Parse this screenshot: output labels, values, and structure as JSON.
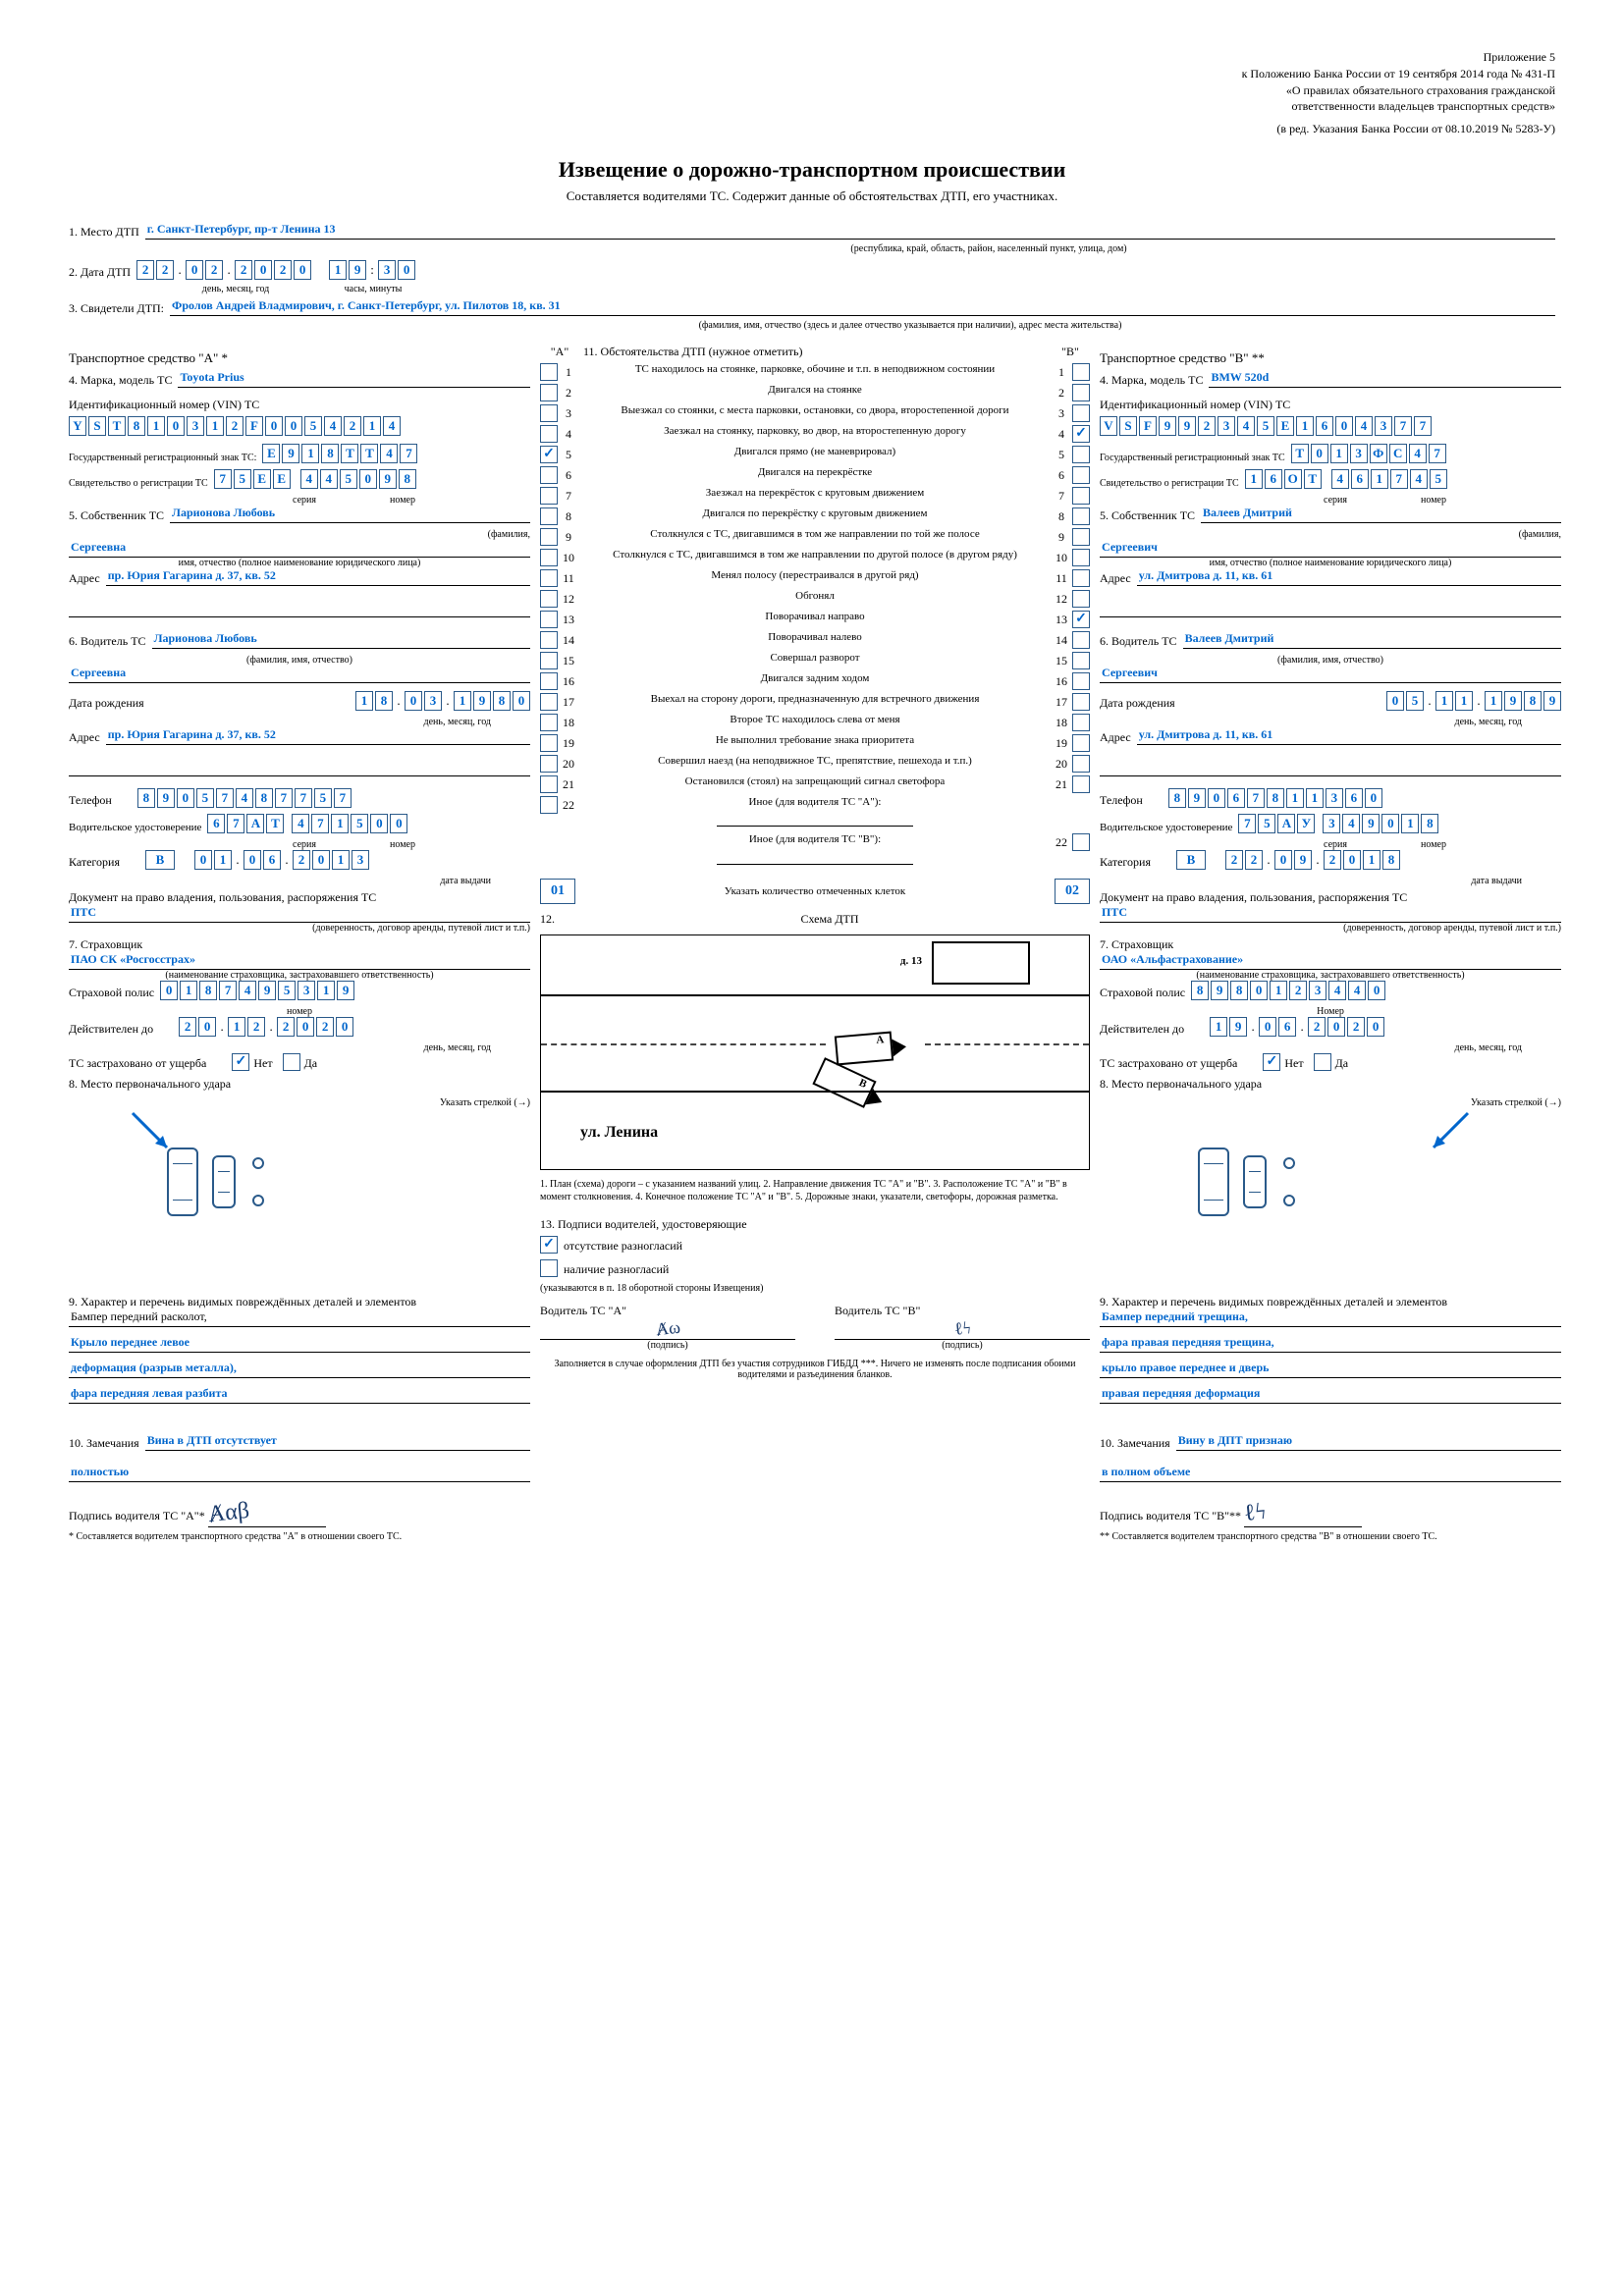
{
  "header": {
    "annex": "Приложение 5",
    "line1": "к Положению Банка России от 19 сентября 2014 года № 431-П",
    "line2": "«О правилах обязательного страхования гражданской",
    "line3": "ответственности владельцев транспортных средств»",
    "line4": "(в ред. Указания Банка России от 08.10.2019 № 5283-У)"
  },
  "title": "Извещение о дорожно-транспортном происшествии",
  "subtitle": "Составляется водителями ТС. Содержит данные об обстоятельствах ДТП, его участниках.",
  "field1": {
    "label": "1. Место ДТП",
    "value": "г. Санкт-Петербург, пр-т Ленина 13",
    "hint": "(республика, край, область, район, населенный пункт, улица, дом)"
  },
  "field2": {
    "label": "2. Дата ДТП",
    "date": [
      "2",
      "2",
      "0",
      "2",
      "2",
      "0",
      "2",
      "0"
    ],
    "time": [
      "1",
      "9",
      "3",
      "0"
    ],
    "date_hint": "день, месяц, год",
    "time_hint": "часы, минуты"
  },
  "field3": {
    "label": "3. Свидетели ДТП:",
    "value": "Фролов Андрей Владмирович, г. Санкт-Петербург, ул. Пилотов 18, кв. 31",
    "hint": "(фамилия, имя, отчество (здесь и далее отчество указывается при наличии), адрес места жительства)"
  },
  "vehicleA": {
    "header": "Транспортное средство \"А\" *",
    "f4_label": "4. Марка, модель ТС",
    "f4_value": "Toyota Prius",
    "vin_label": "Идентификационный номер (VIN) ТС",
    "vin": [
      "Y",
      "S",
      "T",
      "8",
      "1",
      "0",
      "3",
      "1",
      "2",
      "F",
      "0",
      "0",
      "5",
      "4",
      "2",
      "1",
      "4"
    ],
    "reg_label": "Государственный регистрационный знак ТС:",
    "reg": [
      "Е",
      "9",
      "1",
      "8",
      "Т",
      "Т",
      "4",
      "7"
    ],
    "cert_label": "Свидетельство о регистрации ТС",
    "cert_s": [
      "7",
      "5",
      "Е",
      "Е"
    ],
    "cert_n": [
      "4",
      "4",
      "5",
      "0",
      "9",
      "8"
    ],
    "cert_s_hint": "серия",
    "cert_n_hint": "номер",
    "f5_label": "5. Собственник ТС",
    "f5_value1": "Ларионова Любовь",
    "f5_value2": "Сергеевна",
    "f5_hint1": "(фамилия,",
    "f5_hint2": "имя, отчество (полное наименование юридического лица)",
    "addr_label": "Адрес",
    "addr_value": "пр. Юрия Гагарина д. 37, кв. 52",
    "f6_label": "6. Водитель ТС",
    "f6_value1": "Ларионова Любовь",
    "f6_value2": "Сергеевна",
    "f6_hint": "(фамилия, имя, отчество)",
    "dob_label": "Дата рождения",
    "dob": [
      "1",
      "8",
      "0",
      "3",
      "1",
      "9",
      "8",
      "0"
    ],
    "dob_hint": "день, месяц, год",
    "addr2_value": "пр. Юрия Гагарина д. 37, кв. 52",
    "phone_label": "Телефон",
    "phone": [
      "8",
      "9",
      "0",
      "5",
      "7",
      "4",
      "8",
      "7",
      "7",
      "5",
      "7"
    ],
    "lic_label": "Водительское удостоверение",
    "lic_s": [
      "6",
      "7",
      "А",
      "Т"
    ],
    "lic_n": [
      "4",
      "7",
      "1",
      "5",
      "0",
      "0"
    ],
    "cat_label": "Категория",
    "cat_value": "B",
    "cat_date": [
      "0",
      "1",
      "0",
      "6",
      "2",
      "0",
      "1",
      "3"
    ],
    "cat_date_hint": "дата выдачи",
    "doc_label": "Документ на право владения, пользования, распоряжения ТС",
    "doc_value": "ПТС",
    "doc_hint": "(доверенность, договор аренды, путевой лист и т.п.)",
    "f7_label": "7. Страховщик",
    "f7_value": "ПАО СК «Росгосстрах»",
    "f7_hint": "(наименование страховщика, застраховавшего ответственность)",
    "policy_label": "Страховой полис",
    "policy": [
      "0",
      "1",
      "8",
      "7",
      "4",
      "9",
      "5",
      "3",
      "1",
      "9"
    ],
    "policy_hint": "номер",
    "valid_label": "Действителен до",
    "valid": [
      "2",
      "0",
      "1",
      "2",
      "2",
      "0",
      "2",
      "0"
    ],
    "valid_hint": "день, месяц, год",
    "damage_label": "ТС застраховано от ущерба",
    "damage_yes": "Нет",
    "damage_no": "Да",
    "f8_label": "8. Место первоначального удара",
    "f8_hint": "Указать стрелкой (→)",
    "f9_label": "9. Характер и перечень видимых повреждённых деталей и элементов",
    "f9_l1": "Бампер передний расколот,",
    "f9_l2": "Крыло переднее левое",
    "f9_l3": "деформация (разрыв металла),",
    "f9_l4": "фара передняя левая разбита",
    "f10_label": "10. Замечания",
    "f10_l1": "Вина в ДТП отсутствует",
    "f10_l2": "полностью",
    "sig_label": "Подпись водителя ТС \"А\"*",
    "sig_note": "* Составляется водителем транспортного средства \"А\" в отношении своего ТС."
  },
  "vehicleB": {
    "header": "Транспортное средство \"В\" **",
    "f4_label": "4. Марка, модель ТС",
    "f4_value": "BMW 520d",
    "vin_label": "Идентификационный номер (VIN) ТС",
    "vin": [
      "V",
      "S",
      "F",
      "9",
      "9",
      "2",
      "3",
      "4",
      "5",
      "E",
      "1",
      "6",
      "0",
      "4",
      "3",
      "7",
      "7"
    ],
    "reg_label": "Государственный регистрационный знак ТС",
    "reg": [
      "Т",
      "0",
      "1",
      "3",
      "Ф",
      "С",
      "4",
      "7"
    ],
    "cert_label": "Свидетельство о регистрации ТС",
    "cert_s": [
      "1",
      "6",
      "О",
      "Т"
    ],
    "cert_n": [
      "4",
      "6",
      "1",
      "7",
      "4",
      "5"
    ],
    "cert_s_hint": "серия",
    "cert_n_hint": "номер",
    "f5_label": "5. Собственник ТС",
    "f5_value1": "Валеев Дмитрий",
    "f5_value2": "Сергеевич",
    "f5_hint1": "(фамилия,",
    "f5_hint2": "имя, отчество (полное наименование юридического лица)",
    "addr_label": "Адрес",
    "addr_value": "ул. Дмитрова д. 11, кв. 61",
    "f6_label": "6. Водитель ТС",
    "f6_value1": "Валеев Дмитрий",
    "f6_value2": "Сергеевич",
    "f6_hint": "(фамилия, имя, отчество)",
    "dob_label": "Дата рождения",
    "dob": [
      "0",
      "5",
      "1",
      "1",
      "1",
      "9",
      "8",
      "9"
    ],
    "dob_hint": "день, месяц, год",
    "addr2_value": "ул. Дмитрова д. 11, кв. 61",
    "phone_label": "Телефон",
    "phone": [
      "8",
      "9",
      "0",
      "6",
      "7",
      "8",
      "1",
      "1",
      "3",
      "6",
      "0"
    ],
    "lic_label": "Водительское удостоверение",
    "lic_s": [
      "7",
      "5",
      "А",
      "У"
    ],
    "lic_n": [
      "3",
      "4",
      "9",
      "0",
      "1",
      "8"
    ],
    "cat_label": "Категория",
    "cat_value": "B",
    "cat_date": [
      "2",
      "2",
      "0",
      "9",
      "2",
      "0",
      "1",
      "8"
    ],
    "cat_date_hint": "дата выдачи",
    "doc_label": "Документ на право владения, пользования, распоряжения ТС",
    "doc_value": "ПТС",
    "doc_hint": "(доверенность, договор аренды, путевой лист и т.п.)",
    "f7_label": "7. Страховщик",
    "f7_value": "ОАО «Альфастрахование»",
    "f7_hint": "(наименование страховщика, застраховавшего ответственность)",
    "policy_label": "Страховой полис",
    "policy": [
      "8",
      "9",
      "8",
      "0",
      "1",
      "2",
      "3",
      "4",
      "4",
      "0"
    ],
    "policy_hint": "Номер",
    "valid_label": "Действителен до",
    "valid": [
      "1",
      "9",
      "0",
      "6",
      "2",
      "0",
      "2",
      "0"
    ],
    "valid_hint": "день, месяц, год",
    "damage_label": "ТС застраховано от ущерба",
    "damage_yes": "Нет",
    "damage_no": "Да",
    "f8_label": "8. Место первоначального удара",
    "f8_hint": "Указать стрелкой (→)",
    "f9_label": "9. Характер и перечень видимых повреждённых деталей и элементов",
    "f9_l1": "Бампер передний трещина,",
    "f9_l2": "фара правая передняя трещина,",
    "f9_l3": "крыло правое переднее и дверь",
    "f9_l4": "правая передняя деформация",
    "f10_label": "10. Замечания",
    "f10_l1": "Вину в ДПТ признаю",
    "f10_l2": "в полном объеме",
    "sig_label": "Подпись водителя ТС \"В\"**",
    "sig_note": "** Составляется водителем транспортного средства \"В\" в отношении своего ТС."
  },
  "circumstances": {
    "header": "11. Обстоятельства ДТП (нужное отметить)",
    "colA": "\"А\"",
    "colB": "\"В\"",
    "items": [
      "ТС находилось на стоянке, парковке, обочине и т.п. в неподвижном состоянии",
      "Двигался на стоянке",
      "Выезжал со стоянки, с места парковки, остановки, со двора, второстепенной дороги",
      "Заезжал на стоянку, парковку, во двор, на второстепенную дорогу",
      "Двигался прямо (не маневрировал)",
      "Двигался на перекрёстке",
      "Заезжал на перекрёсток с круговым движением",
      "Двигался по перекрёстку с круговым движением",
      "Столкнулся с ТС, двигавшимся в том же направлении по той же полосе",
      "Столкнулся с ТС, двигавшимся в том же направлении по другой полосе (в другом ряду)",
      "Менял полосу (перестраивался в другой ряд)",
      "Обгонял",
      "Поворачивал направо",
      "Поворачивал налево",
      "Совершал разворот",
      "Двигался задним ходом",
      "Выехал на сторону дороги, предназначенную для встречного движения",
      "Второе ТС находилось слева от меня",
      "Не выполнил требование знака приоритета",
      "Совершил наезд (на неподвижное ТС, препятствие, пешехода и т.п.)",
      "Остановился (стоял) на запрещающий сигнал светофора"
    ],
    "otherA_label": "Иное (для водителя ТС \"А\"):",
    "otherB_label": "Иное (для водителя ТС \"В\"):",
    "otherA_num": "22",
    "otherB_num": "22",
    "checkedA": [
      5
    ],
    "checkedB": [
      4,
      13
    ],
    "countA": "01",
    "countB": "02",
    "count_label": "Указать количество отмеченных клеток",
    "scheme_label": "12.",
    "scheme_title": "Схема ДТП",
    "scheme_street": "ул. Ленина",
    "scheme_house": "д. 13",
    "scheme_notes": "1. План (схема) дороги – с указанием названий улиц. 2. Направление движения ТС \"А\" и \"В\". 3. Расположение ТС \"А\" и \"В\" в момент столкновения. 4. Конечное положение ТС \"А\" и \"В\". 5. Дорожные знаки, указатели, светофоры, дорожная разметка.",
    "f13_label": "13. Подписи водителей, удостоверяющие",
    "f13_opt1": "отсутствие разногласий",
    "f13_opt2": "наличие разногласий",
    "f13_hint": "(указываются в п. 18 оборотной стороны Извещения)",
    "sigA_label": "Водитель ТС \"А\"",
    "sigB_label": "Водитель ТС \"В\"",
    "sig_hint": "(подпись)",
    "footer": "Заполняется в случае оформления ДТП без участия сотрудников ГИБДД ***. Ничего не изменять после подписания обоими водителями и разъединения бланков."
  }
}
